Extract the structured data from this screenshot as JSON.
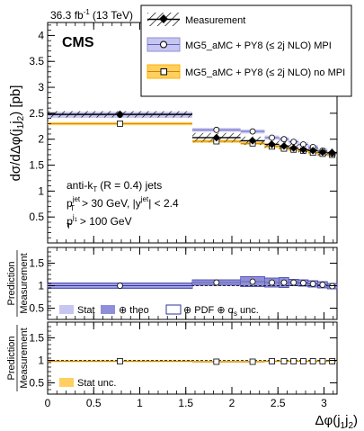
{
  "header": {
    "lumi": "36.3 fb",
    "lumi_sup": "-1",
    "energy": "(13 TeV)",
    "experiment": "CMS"
  },
  "colors": {
    "mpi": "#8f8fd9",
    "mpi_light": "#c6c6f0",
    "nompi": "#ffb000",
    "nompi_light": "#ffd060",
    "frame": "#000000"
  },
  "legend": {
    "entries": [
      {
        "key": "measurement",
        "label": "Measurement"
      },
      {
        "key": "mpi",
        "label": "MG5_aMC + PY8 (≤ 2j NLO) MPI"
      },
      {
        "key": "nompi",
        "label": "MG5_aMC + PY8 (≤ 2j NLO) no MPI"
      }
    ]
  },
  "annotations": {
    "algo": "anti-k",
    "algo_sub": "T",
    "algo_rest": "(R = 0.4) jets",
    "cut1_p": "p",
    "cut1_sup": "jet",
    "cut1_sub": "T",
    "cut1_rest": "> 30 GeV, |y",
    "cut1_sup2": "jet",
    "cut1_rest2": "| < 2.4",
    "cut2_p": "p",
    "cut2_sup": "j",
    "cut2_sup_sub": "1",
    "cut2_sub": "T",
    "cut2_rest": ">  100 GeV"
  },
  "ratio_legends": {
    "mpi": {
      "stat": "Stat",
      "theo": "⊕ theo",
      "pdf": "⊕ PDF ⊕ α",
      "pdf_sub": "s",
      "pdf_rest": "unc."
    },
    "nompi": {
      "stat": "Stat unc."
    }
  },
  "chart_data": [
    {
      "type": "line",
      "panel": "main",
      "ylabel": "dσ/dΔφ(j",
      "ylabel_sub1": "1",
      "ylabel_mid": "j",
      "ylabel_sub2": "2",
      "ylabel_unit": ") [pb]",
      "ylim": [
        0,
        4.25
      ],
      "yticks": [
        "0.5",
        "1",
        "1.5",
        "2",
        "2.5",
        "3",
        "3.5",
        "4"
      ],
      "bins": [
        [
          0,
          1.5708
        ],
        [
          1.5708,
          2.0944
        ],
        [
          2.0944,
          2.3562
        ],
        [
          2.3562,
          2.5133
        ],
        [
          2.5133,
          2.618
        ],
        [
          2.618,
          2.7227
        ],
        [
          2.7227,
          2.8274
        ],
        [
          2.8274,
          2.9322
        ],
        [
          2.9322,
          3.0369
        ],
        [
          3.0369,
          3.1416
        ]
      ],
      "series": [
        {
          "name": "Measurement",
          "values": [
            2.48,
            2.03,
            1.97,
            1.9,
            1.87,
            1.83,
            1.8,
            1.78,
            1.75,
            1.74
          ],
          "band": [
            0.06,
            0.09,
            0.08,
            0.08,
            0.08,
            0.08,
            0.08,
            0.08,
            0.08,
            0.08
          ]
        },
        {
          "name": "MG5_aMC + PY8 (≤ 2j NLO) MPI",
          "values": [
            2.47,
            2.18,
            2.15,
            2.03,
            2.0,
            1.95,
            1.9,
            1.85,
            1.78,
            1.72
          ],
          "band": [
            0.06,
            0.04,
            0.04,
            0.04,
            0.04,
            0.04,
            0.04,
            0.04,
            0.04,
            0.04
          ]
        },
        {
          "name": "MG5_aMC + PY8 (≤ 2j NLO) no MPI",
          "values": [
            2.3,
            1.96,
            1.92,
            1.86,
            1.82,
            1.8,
            1.78,
            1.74,
            1.72,
            1.7
          ],
          "band": [
            0.03,
            0.03,
            0.03,
            0.03,
            0.03,
            0.03,
            0.03,
            0.03,
            0.03,
            0.03
          ]
        }
      ]
    },
    {
      "type": "line",
      "panel": "ratio-mpi",
      "ylabel_top": "Prediction",
      "ylabel_bottom": "Measurement",
      "ylim": [
        0.25,
        1.85
      ],
      "yticks": [
        "0.5",
        "1",
        "1.5"
      ],
      "values": [
        1.0,
        1.07,
        1.09,
        1.07,
        1.07,
        1.07,
        1.06,
        1.04,
        1.02,
        0.99
      ],
      "stat_band": [
        0.02,
        0.02,
        0.02,
        0.02,
        0.02,
        0.02,
        0.02,
        0.02,
        0.02,
        0.02
      ],
      "theo_band": [
        0.05,
        0.05,
        0.1,
        0.09,
        0.1,
        0.06,
        0.06,
        0.06,
        0.06,
        0.05
      ],
      "total_band": [
        0.06,
        0.06,
        0.11,
        0.1,
        0.11,
        0.07,
        0.07,
        0.07,
        0.07,
        0.06
      ]
    },
    {
      "type": "line",
      "panel": "ratio-nompi",
      "ylabel_top": "Prediction",
      "ylabel_bottom": "Measurement",
      "ylim": [
        0.25,
        1.85
      ],
      "yticks": [
        "0.5",
        "1",
        "1.5"
      ],
      "xlabel": "Δφ(j",
      "xlabel_sub1": "1",
      "xlabel_mid": "j",
      "xlabel_sub2": "2",
      "xlabel_end": ")",
      "xlim": [
        0,
        3.1416
      ],
      "xticks": [
        "0",
        "0.5",
        "1",
        "1.5",
        "2",
        "2.5",
        "3"
      ],
      "values": [
        0.98,
        0.97,
        0.97,
        0.98,
        0.98,
        0.98,
        0.98,
        0.98,
        0.98,
        0.98
      ],
      "stat_band": [
        0.02,
        0.02,
        0.02,
        0.02,
        0.02,
        0.02,
        0.02,
        0.02,
        0.02,
        0.02
      ]
    }
  ]
}
